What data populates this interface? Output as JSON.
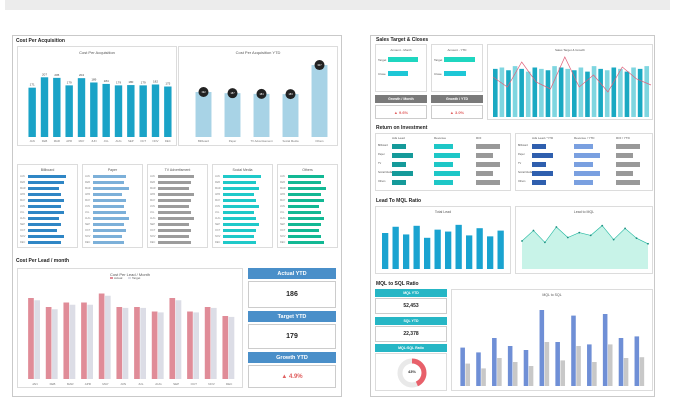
{
  "left": {
    "section1": "Cost Per Acquisition",
    "cpa_chart": {
      "title": "Cost Per Acquisition",
      "months": [
        "JAN",
        "FEB",
        "MAR",
        "APR",
        "MAY",
        "JUN",
        "JUL",
        "AUG",
        "SEP",
        "OCT",
        "NOV",
        "DEC"
      ],
      "values": [
        171,
        207,
        205,
        179,
        204,
        189,
        184,
        179,
        180,
        179,
        182,
        175
      ],
      "color": "#1aa3c7"
    },
    "cpa_ytd_chart": {
      "title": "Cost Per Acquisition YTD",
      "categories": [
        "Billboard",
        "Paper",
        "TV Advertisement",
        "Social Media",
        "Others"
      ],
      "values": [
        192,
        187,
        184,
        183,
        307
      ],
      "color": "#a8d3e6"
    },
    "minis": [
      {
        "title": "Billboard",
        "color": "#2f86c5",
        "values": [
          170,
          160,
          140,
          150,
          160,
          150,
          160,
          140,
          150,
          130,
          160,
          150
        ]
      },
      {
        "title": "Paper",
        "color": "#7cb0d9",
        "values": [
          150,
          140,
          160,
          130,
          150,
          140,
          150,
          160,
          140,
          150,
          130,
          140
        ]
      },
      {
        "title": "TV Advertisment",
        "color": "#9c9c9c",
        "values": [
          160,
          150,
          140,
          160,
          150,
          140,
          150,
          160,
          140,
          150,
          140,
          150
        ]
      },
      {
        "title": "Social Media",
        "color": "#1fc9c9",
        "values": [
          170,
          150,
          160,
          140,
          150,
          160,
          140,
          150,
          160,
          150,
          140,
          150
        ]
      },
      {
        "title": "Others",
        "color": "#12b894",
        "values": [
          160,
          150,
          170,
          150,
          160,
          140,
          150,
          160,
          150,
          140,
          150,
          160
        ]
      }
    ],
    "section2": "Cost Per Lead / month",
    "cpl_chart": {
      "title": "Cost Per Lead / Month",
      "legend": [
        "Actual",
        "Target"
      ],
      "months": [
        "JAN",
        "FEB",
        "MAR",
        "APR",
        "MAY",
        "JUN",
        "JUL",
        "AUG",
        "SEP",
        "OCT",
        "NOV",
        "DEC"
      ],
      "series": [
        {
          "name": "Actual",
          "values": [
            180,
            160,
            170,
            170,
            190,
            160,
            160,
            150,
            180,
            150,
            160,
            140
          ],
          "color": "#e08c98"
        },
        {
          "name": "Target",
          "values": [
            175,
            155,
            165,
            165,
            185,
            158,
            158,
            148,
            175,
            148,
            158,
            138
          ],
          "color": "#dcdde6"
        }
      ]
    },
    "kpi": {
      "actual_label": "Actual YTD",
      "actual_value": "186",
      "target_label": "Target YTD",
      "target_value": "179",
      "growth_label": "Growth YTD",
      "growth_value": "▲ 4.9%"
    }
  },
  "right": {
    "section1": "Sales Target & Closes",
    "amount_month": {
      "title": "Amount - Month",
      "rows": [
        "Target",
        "Close"
      ],
      "values": [
        0.82,
        0.55
      ]
    },
    "amount_ytd": {
      "title": "Amount - YTD",
      "rows": [
        "Target",
        "Close"
      ],
      "values": [
        0.85,
        0.62
      ]
    },
    "growth_month": {
      "label": "Growth / Month",
      "value": "▲ 9.6%"
    },
    "growth_ytd": {
      "label": "Growth / YTD",
      "value": "▲ 3.0%"
    },
    "sales_chart": {
      "title": "Sales Target & Growth",
      "bars": [
        70,
        72,
        68,
        74,
        70,
        66,
        72,
        70,
        68,
        74,
        72,
        70,
        68,
        72,
        66,
        74,
        70,
        68,
        72,
        70,
        66,
        72,
        70,
        74
      ],
      "line": [
        40,
        30,
        55,
        35,
        28,
        60,
        30,
        42,
        25,
        50,
        38,
        32
      ]
    },
    "section2": "Return on Investment",
    "roi_cols": [
      "Ads Lead",
      "Revenue",
      "ROI",
      "Ads Lead / YTD",
      "Revenue / YTD",
      "ROI / YTD"
    ],
    "roi_rows": [
      "Billboard",
      "Paper",
      "TV",
      "Social Media",
      "Others"
    ],
    "section3": "Lead To MQL Ratio",
    "total_lead": {
      "title": "Total Lead",
      "values": [
        75,
        88,
        72,
        90,
        65,
        82,
        78,
        92,
        70,
        85,
        68,
        80
      ]
    },
    "lead_mql": {
      "title": "Lead to MQL",
      "values": [
        40,
        55,
        38,
        60,
        45,
        52,
        48,
        62,
        42,
        58,
        44,
        36
      ]
    },
    "section4": "MQL to SQL Ratio",
    "mql_label": "MQL YTD",
    "mql_value": "52,453",
    "sql_label": "SQL YTD",
    "sql_value": "22,378",
    "ratio_label": "MQL:SQL Ratio",
    "ratio_value": "43%",
    "mql_sql_chart": {
      "title": "MQL to SQL",
      "series": [
        {
          "name": "MQL",
          "values": [
            48,
            42,
            60,
            50,
            45,
            95,
            55,
            88,
            52,
            90,
            60,
            62
          ],
          "color": "#6f8fd6"
        },
        {
          "name": "SQL",
          "values": [
            28,
            22,
            35,
            30,
            25,
            55,
            32,
            50,
            30,
            52,
            35,
            36
          ],
          "color": "#c8c8c8"
        }
      ]
    }
  }
}
